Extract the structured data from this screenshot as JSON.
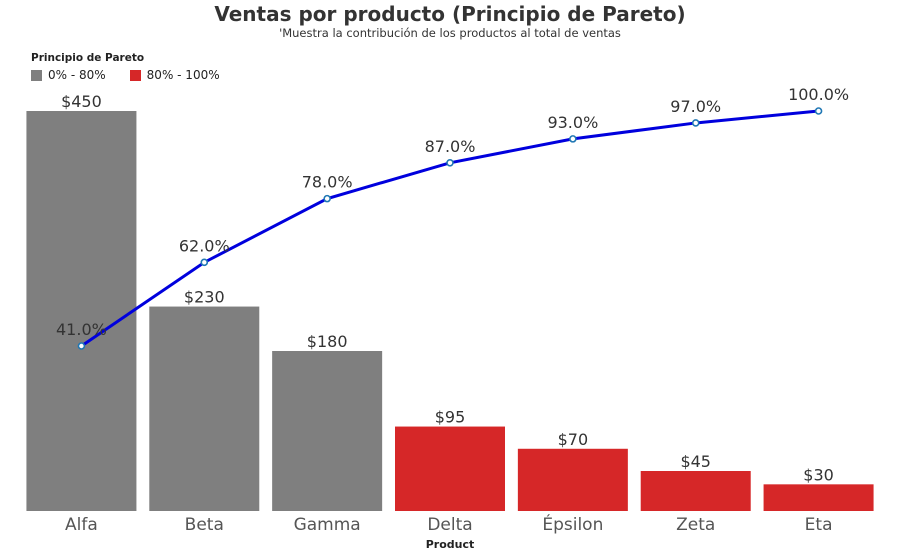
{
  "chart_data": {
    "type": "bar",
    "title": "Ventas por producto (Principio de Pareto)",
    "subtitle": "'Muestra la contribución de los productos al total de ventas",
    "xlabel": "Product",
    "ylabel": "",
    "categories": [
      "Alfa",
      "Beta",
      "Gamma",
      "Delta",
      "Épsilon",
      "Zeta",
      "Eta"
    ],
    "series": [
      {
        "type": "bar",
        "values": [
          450,
          230,
          180,
          95,
          70,
          45,
          30
        ],
        "labels": [
          "$450",
          "$230",
          "$180",
          "$95",
          "$70",
          "$45",
          "$30"
        ],
        "groups": [
          "0% - 80%",
          "0% - 80%",
          "0% - 80%",
          "80% - 100%",
          "80% - 100%",
          "80% - 100%",
          "80% - 100%"
        ]
      },
      {
        "type": "line",
        "values": [
          41.0,
          62.0,
          78.0,
          87.0,
          93.0,
          97.0,
          100.0
        ],
        "labels": [
          "41.0%",
          "62.0%",
          "78.0%",
          "87.0%",
          "93.0%",
          "97.0%",
          "100.0%"
        ],
        "color": "#0000dd"
      }
    ],
    "legend": {
      "title": "Principio de Pareto",
      "placement": "top-left",
      "items": [
        {
          "label": "0% - 80%",
          "color": "#7f7f7f"
        },
        {
          "label": "80% - 100%",
          "color": "#d62728"
        }
      ]
    },
    "grid": false
  }
}
